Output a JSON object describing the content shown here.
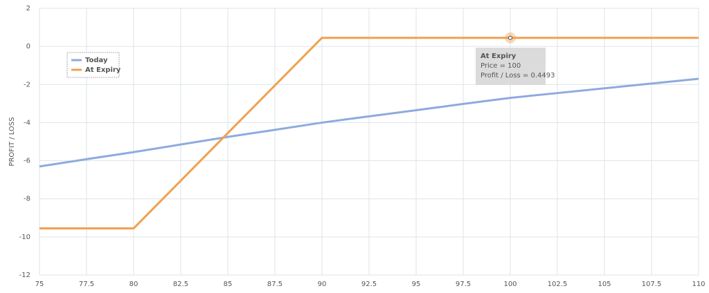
{
  "chart_data": {
    "type": "line",
    "y_label": "PROFIT / LOSS",
    "x": [
      75,
      77.5,
      80,
      82.5,
      85,
      87.5,
      90,
      92.5,
      95,
      97.5,
      100,
      102.5,
      105,
      107.5,
      110
    ],
    "series": [
      {
        "name": "Today",
        "color": "#8eaadf",
        "values": [
          -6.3,
          -5.92,
          -5.55,
          -5.15,
          -4.75,
          -4.38,
          -4.0,
          -3.67,
          -3.35,
          -3.02,
          -2.7,
          -2.45,
          -2.2,
          -1.95,
          -1.7
        ]
      },
      {
        "name": "At Expiry",
        "color": "#f0a050",
        "values": [
          -9.5507,
          -9.5507,
          -9.5507,
          -7.0507,
          -4.5507,
          -2.0507,
          0.4493,
          0.4493,
          0.4493,
          0.4493,
          0.4493,
          0.4493,
          0.4493,
          0.4493,
          0.4493
        ]
      }
    ],
    "xlim": [
      75,
      110
    ],
    "xticks": [
      75,
      77.5,
      80,
      82.5,
      85,
      87.5,
      90,
      92.5,
      95,
      97.5,
      100,
      102.5,
      105,
      107.5,
      110
    ],
    "ylim": [
      -12,
      2
    ],
    "yticks": [
      2,
      0,
      -2,
      -4,
      -6,
      -8,
      -10,
      -12
    ],
    "grid": true,
    "legend": "upper left",
    "tooltip": {
      "series": 1,
      "index": 10,
      "lines": [
        "Price = 100",
        "Profit / Loss = 0.4493"
      ]
    }
  }
}
